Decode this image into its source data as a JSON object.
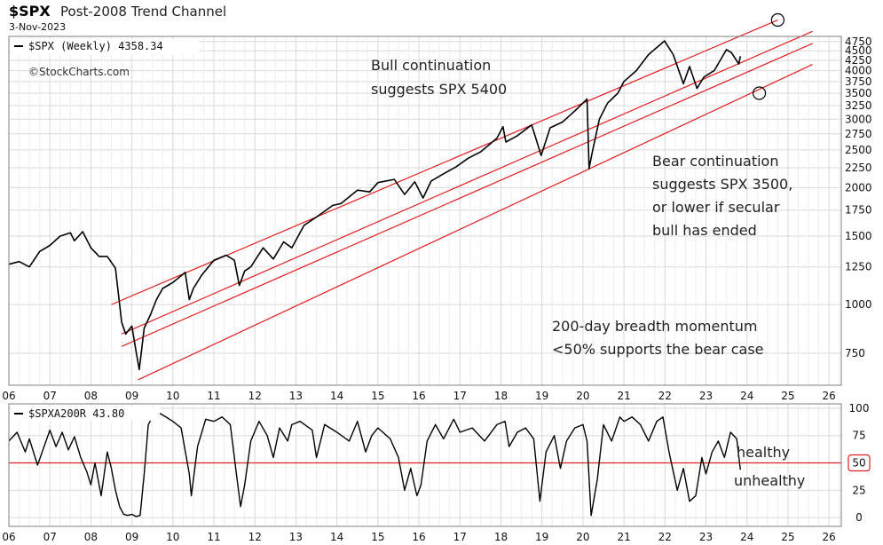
{
  "header": {
    "symbol": "$SPX",
    "title": "Post-2008 Trend Channel",
    "date": "3-Nov-2023",
    "watermark": "©StockCharts.com"
  },
  "colors": {
    "price_line": "#000000",
    "channel": "#e02020",
    "fifty_line": "#e02020",
    "grid": "#d9d9d9",
    "frame": "#7f7f7f"
  },
  "chart_data": [
    {
      "type": "line",
      "scale": "log",
      "legend": "$SPX (Weekly) 4358.34",
      "ylim": [
        620,
        4900
      ],
      "xlim": [
        2006.0,
        2026.3
      ],
      "x_tick_labels": [
        "06",
        "07",
        "08",
        "09",
        "10",
        "11",
        "12",
        "13",
        "14",
        "15",
        "16",
        "17",
        "18",
        "19",
        "20",
        "21",
        "22",
        "23",
        "24",
        "25",
        "26"
      ],
      "y_tick_labels": [
        "750",
        "1000",
        "1250",
        "1500",
        "1750",
        "2000",
        "2250",
        "2500",
        "2750",
        "3000",
        "3250",
        "3500",
        "3750",
        "4000",
        "4250",
        "4500",
        "4750"
      ],
      "y_ticks": [
        750,
        1000,
        1250,
        1500,
        1750,
        2000,
        2250,
        2500,
        2750,
        3000,
        3250,
        3500,
        3750,
        4000,
        4250,
        4500,
        4750
      ],
      "series": [
        {
          "x": [
            2006.0,
            2006.25,
            2006.5,
            2006.75,
            2007.0,
            2007.25,
            2007.5,
            2007.6,
            2007.8,
            2008.0,
            2008.2,
            2008.4,
            2008.6,
            2008.75,
            2008.85,
            2009.0,
            2009.1,
            2009.18,
            2009.3,
            2009.45,
            2009.6,
            2009.75,
            2010.0,
            2010.3,
            2010.4,
            2010.5,
            2010.7,
            2011.0,
            2011.3,
            2011.5,
            2011.62,
            2011.75,
            2011.9,
            2012.2,
            2012.45,
            2012.7,
            2012.9,
            2013.2,
            2013.5,
            2013.9,
            2014.1,
            2014.5,
            2014.8,
            2015.0,
            2015.4,
            2015.65,
            2015.9,
            2016.1,
            2016.3,
            2016.6,
            2016.9,
            2017.2,
            2017.5,
            2017.9,
            2018.05,
            2018.12,
            2018.4,
            2018.75,
            2018.98,
            2019.2,
            2019.5,
            2019.8,
            2020.1,
            2020.15,
            2020.22,
            2020.4,
            2020.6,
            2020.85,
            2021.0,
            2021.3,
            2021.6,
            2021.99,
            2022.2,
            2022.45,
            2022.6,
            2022.78,
            2022.95,
            2023.2,
            2023.5,
            2023.62,
            2023.8,
            2023.84
          ],
          "values": [
            1270,
            1290,
            1250,
            1370,
            1420,
            1500,
            1530,
            1460,
            1540,
            1400,
            1330,
            1330,
            1240,
            900,
            840,
            880,
            760,
            680,
            870,
            940,
            1030,
            1100,
            1140,
            1210,
            1030,
            1100,
            1190,
            1300,
            1340,
            1300,
            1120,
            1220,
            1250,
            1400,
            1310,
            1450,
            1400,
            1600,
            1680,
            1800,
            1820,
            1970,
            1950,
            2060,
            2100,
            1920,
            2070,
            1880,
            2080,
            2170,
            2260,
            2380,
            2470,
            2680,
            2870,
            2620,
            2720,
            2900,
            2420,
            2850,
            2950,
            3150,
            3380,
            2240,
            2450,
            3000,
            3300,
            3500,
            3750,
            4000,
            4400,
            4770,
            4400,
            3700,
            4100,
            3600,
            3850,
            4000,
            4530,
            4450,
            4160,
            4358
          ]
        }
      ],
      "channel_lines": [
        {
          "x": [
            2008.5,
            2024.75
          ],
          "values": [
            1000,
            5400
          ]
        },
        {
          "x": [
            2008.75,
            2025.6
          ],
          "values": [
            840,
            5050
          ]
        },
        {
          "x": [
            2008.75,
            2025.6
          ],
          "values": [
            780,
            4700
          ]
        },
        {
          "x": [
            2009.15,
            2025.6
          ],
          "values": [
            640,
            4150
          ]
        }
      ],
      "target_markers": [
        {
          "x": 2024.75,
          "value": 5400
        },
        {
          "x": 2024.3,
          "value": 3500
        }
      ],
      "annotations": [
        {
          "lines": [
            "Bull continuation",
            "suggests SPX 5400"
          ]
        },
        {
          "lines": [
            "Bear continuation",
            "suggests SPX 3500,",
            "or lower if secular",
            "bull has ended"
          ]
        },
        {
          "lines": [
            "200-day breadth momentum",
            "<50% supports the bear case"
          ]
        }
      ]
    },
    {
      "type": "line",
      "scale": "linear",
      "legend": "$SPXA200R 43.80",
      "ylim": [
        -8,
        104
      ],
      "xlim": [
        2006.0,
        2026.3
      ],
      "y_tick_labels": [
        "0",
        "25",
        "50",
        "75",
        "100"
      ],
      "y_ticks": [
        0,
        25,
        50,
        75,
        100
      ],
      "reference_line": 50,
      "reference_label": "50",
      "zone_labels": [
        "healthy",
        "unhealthy"
      ],
      "series": [
        {
          "x": [
            2006.0,
            2006.2,
            2006.4,
            2006.5,
            2006.7,
            2007.0,
            2007.15,
            2007.3,
            2007.45,
            2007.6,
            2007.75,
            2007.9,
            2008.0,
            2008.1,
            2008.25,
            2008.4,
            2008.5,
            2008.6,
            2008.7,
            2008.8,
            2008.9,
            2009.0,
            2009.1,
            2009.2,
            2009.3,
            2009.4,
            2009.5,
            2009.7,
            2010.0,
            2010.2,
            2010.4,
            2010.45,
            2010.6,
            2010.8,
            2011.0,
            2011.2,
            2011.4,
            2011.55,
            2011.65,
            2011.75,
            2011.9,
            2012.1,
            2012.3,
            2012.45,
            2012.6,
            2012.8,
            2012.9,
            2013.1,
            2013.4,
            2013.5,
            2013.7,
            2014.0,
            2014.3,
            2014.5,
            2014.7,
            2014.85,
            2015.0,
            2015.3,
            2015.5,
            2015.65,
            2015.8,
            2015.95,
            2016.05,
            2016.2,
            2016.4,
            2016.6,
            2016.85,
            2017.0,
            2017.3,
            2017.6,
            2017.9,
            2018.1,
            2018.2,
            2018.4,
            2018.6,
            2018.8,
            2018.95,
            2019.1,
            2019.3,
            2019.45,
            2019.6,
            2019.8,
            2020.0,
            2020.1,
            2020.2,
            2020.35,
            2020.5,
            2020.7,
            2020.9,
            2021.0,
            2021.2,
            2021.4,
            2021.6,
            2021.8,
            2021.95,
            2022.1,
            2022.3,
            2022.45,
            2022.6,
            2022.75,
            2022.9,
            2023.0,
            2023.15,
            2023.3,
            2023.45,
            2023.6,
            2023.75,
            2023.84
          ],
          "values": [
            70,
            78,
            60,
            72,
            48,
            80,
            65,
            78,
            62,
            74,
            55,
            42,
            30,
            50,
            20,
            60,
            45,
            25,
            10,
            3,
            2,
            3,
            1,
            2,
            40,
            85,
            92,
            95,
            88,
            82,
            40,
            20,
            65,
            90,
            88,
            92,
            85,
            40,
            10,
            30,
            70,
            88,
            75,
            55,
            82,
            70,
            85,
            88,
            80,
            55,
            85,
            78,
            70,
            88,
            60,
            75,
            82,
            72,
            55,
            25,
            45,
            20,
            30,
            70,
            85,
            72,
            90,
            78,
            82,
            70,
            85,
            88,
            65,
            78,
            82,
            72,
            15,
            60,
            75,
            45,
            70,
            82,
            85,
            70,
            2,
            35,
            85,
            70,
            92,
            88,
            92,
            85,
            70,
            88,
            92,
            60,
            25,
            45,
            15,
            20,
            55,
            40,
            60,
            70,
            55,
            78,
            72,
            43.8
          ]
        }
      ]
    }
  ]
}
